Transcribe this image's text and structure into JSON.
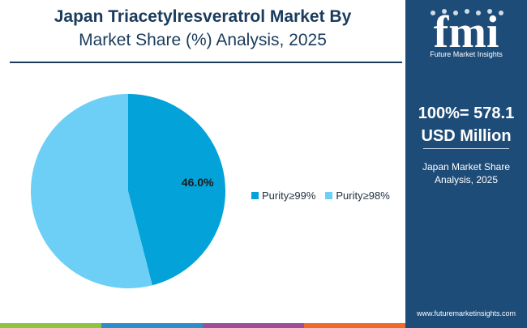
{
  "header": {
    "title_line1": "Japan Triacetylresveratrol Market By",
    "title_line2": "Market Share (%) Analysis, 2025"
  },
  "chart_data": {
    "type": "pie",
    "slices": [
      {
        "label": "Purity≥99%",
        "value": 46.0,
        "data_label": "46.0%",
        "color": "#03a2d9"
      },
      {
        "label": "Purity≥98%",
        "value": 54.0,
        "data_label": "",
        "color": "#6dcff6"
      }
    ],
    "legend_position": "right"
  },
  "side_panel": {
    "logo_text": "fmi",
    "logo_subtitle": "Future Market Insights",
    "total_line1": "100%= 578.1",
    "total_line2": "USD Million",
    "caption_line1": "Japan Market Share",
    "caption_line2": "Analysis, 2025",
    "url": "www.futuremarketinsights.com"
  },
  "colors": {
    "panel": "#1e4c78",
    "title": "#1a3b5c",
    "bar": [
      "#8cc63f",
      "#2e8ec9",
      "#9b4f96",
      "#ec6a2c"
    ]
  }
}
